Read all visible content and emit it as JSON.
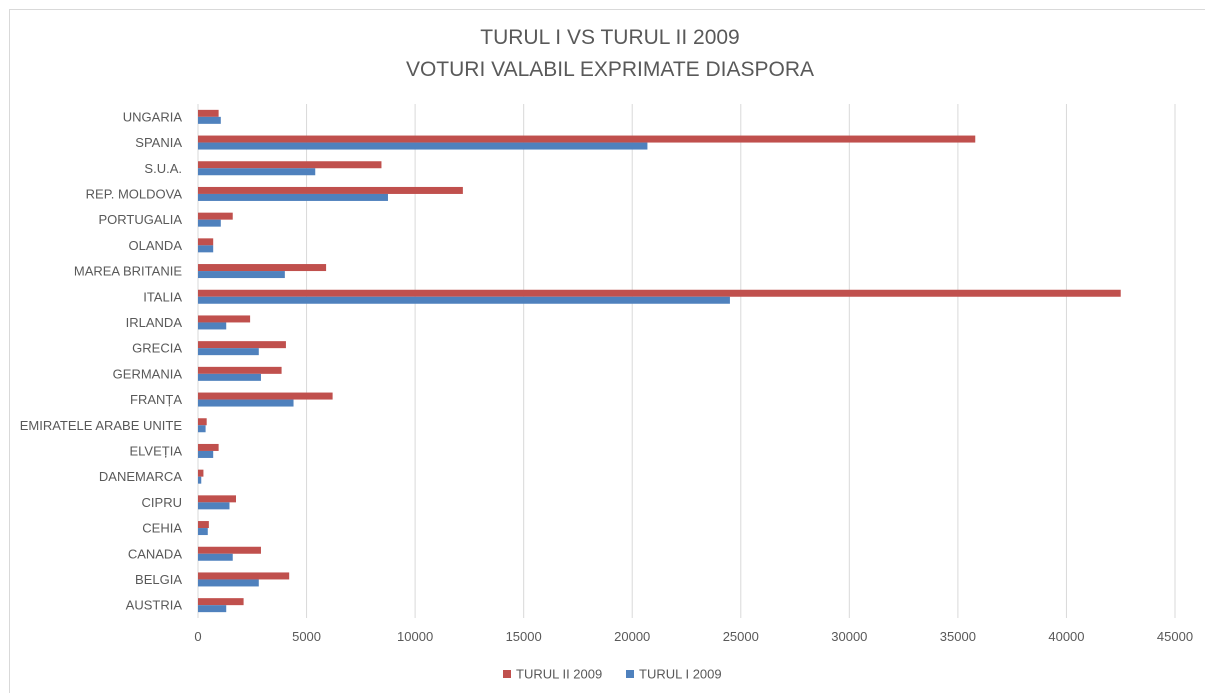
{
  "chart_data": {
    "type": "bar",
    "orientation": "horizontal",
    "title": "TURUL I VS TURUL II 2009",
    "subtitle": "VOTURI VALABIL EXPRIMATE DIASPORA",
    "categories": [
      "AUSTRIA",
      "BELGIA",
      "CANADA",
      "CEHIA",
      "CIPRU",
      "DANEMARCA",
      "ELVEȚIA",
      "EMIRATELE ARABE UNITE",
      "FRANȚA",
      "GERMANIA",
      "GRECIA",
      "IRLANDA",
      "ITALIA",
      "MAREA BRITANIE",
      "OLANDA",
      "PORTUGALIA",
      "REP. MOLDOVA",
      "S.U.A.",
      "SPANIA",
      "UNGARIA"
    ],
    "series": [
      {
        "name": "TURUL II 2009",
        "color": "#c0504d",
        "values": [
          2100,
          4200,
          2900,
          500,
          1750,
          250,
          950,
          400,
          6200,
          3850,
          4050,
          2400,
          42500,
          5900,
          700,
          1600,
          12200,
          8450,
          35800,
          950
        ]
      },
      {
        "name": "TURUL I 2009",
        "color": "#4f81bd",
        "values": [
          1300,
          2800,
          1600,
          450,
          1450,
          150,
          700,
          350,
          4400,
          2900,
          2800,
          1300,
          24500,
          4000,
          700,
          1050,
          8750,
          5400,
          20700,
          1050
        ]
      }
    ],
    "xlim": [
      0,
      45000
    ],
    "xticks": [
      0,
      5000,
      10000,
      15000,
      20000,
      25000,
      30000,
      35000,
      40000,
      45000
    ],
    "grid": "vertical",
    "legend": "bottom"
  }
}
